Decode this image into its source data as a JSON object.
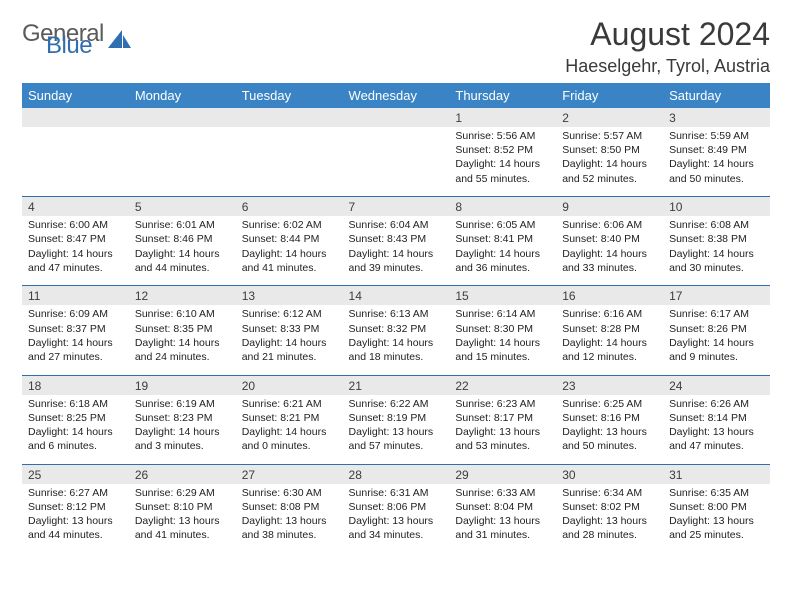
{
  "logo": {
    "text1": "General",
    "text2": "Blue"
  },
  "title": "August 2024",
  "location": "Haeselgehr, Tyrol, Austria",
  "colors": {
    "header_bg": "#3a84c5",
    "header_fg": "#ffffff",
    "daynum_bg": "#e9e9e9",
    "sep": "#2f6fb0",
    "logo_gray": "#5b5b5b",
    "logo_blue": "#2f6fb0",
    "text": "#222222"
  },
  "day_names": [
    "Sunday",
    "Monday",
    "Tuesday",
    "Wednesday",
    "Thursday",
    "Friday",
    "Saturday"
  ],
  "weeks": [
    [
      null,
      null,
      null,
      null,
      {
        "n": "1",
        "sr": "5:56 AM",
        "ss": "8:52 PM",
        "dl": "14 hours and 55 minutes."
      },
      {
        "n": "2",
        "sr": "5:57 AM",
        "ss": "8:50 PM",
        "dl": "14 hours and 52 minutes."
      },
      {
        "n": "3",
        "sr": "5:59 AM",
        "ss": "8:49 PM",
        "dl": "14 hours and 50 minutes."
      }
    ],
    [
      {
        "n": "4",
        "sr": "6:00 AM",
        "ss": "8:47 PM",
        "dl": "14 hours and 47 minutes."
      },
      {
        "n": "5",
        "sr": "6:01 AM",
        "ss": "8:46 PM",
        "dl": "14 hours and 44 minutes."
      },
      {
        "n": "6",
        "sr": "6:02 AM",
        "ss": "8:44 PM",
        "dl": "14 hours and 41 minutes."
      },
      {
        "n": "7",
        "sr": "6:04 AM",
        "ss": "8:43 PM",
        "dl": "14 hours and 39 minutes."
      },
      {
        "n": "8",
        "sr": "6:05 AM",
        "ss": "8:41 PM",
        "dl": "14 hours and 36 minutes."
      },
      {
        "n": "9",
        "sr": "6:06 AM",
        "ss": "8:40 PM",
        "dl": "14 hours and 33 minutes."
      },
      {
        "n": "10",
        "sr": "6:08 AM",
        "ss": "8:38 PM",
        "dl": "14 hours and 30 minutes."
      }
    ],
    [
      {
        "n": "11",
        "sr": "6:09 AM",
        "ss": "8:37 PM",
        "dl": "14 hours and 27 minutes."
      },
      {
        "n": "12",
        "sr": "6:10 AM",
        "ss": "8:35 PM",
        "dl": "14 hours and 24 minutes."
      },
      {
        "n": "13",
        "sr": "6:12 AM",
        "ss": "8:33 PM",
        "dl": "14 hours and 21 minutes."
      },
      {
        "n": "14",
        "sr": "6:13 AM",
        "ss": "8:32 PM",
        "dl": "14 hours and 18 minutes."
      },
      {
        "n": "15",
        "sr": "6:14 AM",
        "ss": "8:30 PM",
        "dl": "14 hours and 15 minutes."
      },
      {
        "n": "16",
        "sr": "6:16 AM",
        "ss": "8:28 PM",
        "dl": "14 hours and 12 minutes."
      },
      {
        "n": "17",
        "sr": "6:17 AM",
        "ss": "8:26 PM",
        "dl": "14 hours and 9 minutes."
      }
    ],
    [
      {
        "n": "18",
        "sr": "6:18 AM",
        "ss": "8:25 PM",
        "dl": "14 hours and 6 minutes."
      },
      {
        "n": "19",
        "sr": "6:19 AM",
        "ss": "8:23 PM",
        "dl": "14 hours and 3 minutes."
      },
      {
        "n": "20",
        "sr": "6:21 AM",
        "ss": "8:21 PM",
        "dl": "14 hours and 0 minutes."
      },
      {
        "n": "21",
        "sr": "6:22 AM",
        "ss": "8:19 PM",
        "dl": "13 hours and 57 minutes."
      },
      {
        "n": "22",
        "sr": "6:23 AM",
        "ss": "8:17 PM",
        "dl": "13 hours and 53 minutes."
      },
      {
        "n": "23",
        "sr": "6:25 AM",
        "ss": "8:16 PM",
        "dl": "13 hours and 50 minutes."
      },
      {
        "n": "24",
        "sr": "6:26 AM",
        "ss": "8:14 PM",
        "dl": "13 hours and 47 minutes."
      }
    ],
    [
      {
        "n": "25",
        "sr": "6:27 AM",
        "ss": "8:12 PM",
        "dl": "13 hours and 44 minutes."
      },
      {
        "n": "26",
        "sr": "6:29 AM",
        "ss": "8:10 PM",
        "dl": "13 hours and 41 minutes."
      },
      {
        "n": "27",
        "sr": "6:30 AM",
        "ss": "8:08 PM",
        "dl": "13 hours and 38 minutes."
      },
      {
        "n": "28",
        "sr": "6:31 AM",
        "ss": "8:06 PM",
        "dl": "13 hours and 34 minutes."
      },
      {
        "n": "29",
        "sr": "6:33 AM",
        "ss": "8:04 PM",
        "dl": "13 hours and 31 minutes."
      },
      {
        "n": "30",
        "sr": "6:34 AM",
        "ss": "8:02 PM",
        "dl": "13 hours and 28 minutes."
      },
      {
        "n": "31",
        "sr": "6:35 AM",
        "ss": "8:00 PM",
        "dl": "13 hours and 25 minutes."
      }
    ]
  ],
  "labels": {
    "sunrise": "Sunrise: ",
    "sunset": "Sunset: ",
    "daylight": "Daylight: "
  }
}
